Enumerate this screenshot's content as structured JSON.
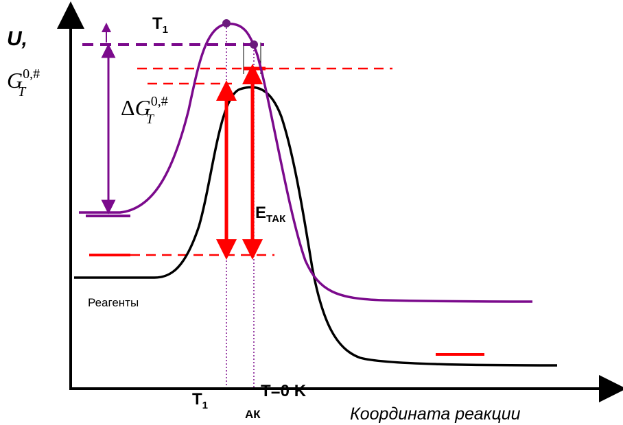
{
  "axes": {
    "y_label": "U,",
    "x_label": "Координата реакции"
  },
  "energy_label": {
    "base": "G",
    "sub": "T",
    "sup": "0,#"
  },
  "delta_label": {
    "prefix": "Δ",
    "base": "G",
    "sub": "T",
    "sup": "0,#"
  },
  "top_temp": {
    "base": "T",
    "sub": "1"
  },
  "activation": {
    "base": "E",
    "sub": "ТАК"
  },
  "reagents": "Реагенты",
  "bottom_temp": {
    "base": "T",
    "sub": "1"
  },
  "zero_temp": "T=0 K",
  "complex": "АК"
}
